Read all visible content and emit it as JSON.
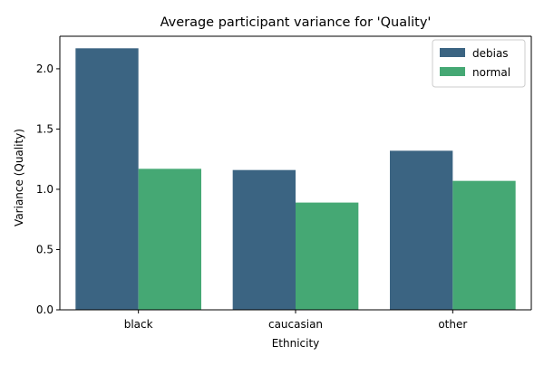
{
  "chart_data": {
    "type": "bar",
    "title": "Average participant variance for 'Quality'",
    "xlabel": "Ethnicity",
    "ylabel": "Variance (Quality)",
    "categories": [
      "black",
      "caucasian",
      "other"
    ],
    "series": [
      {
        "name": "debias",
        "values": [
          2.17,
          1.16,
          1.32
        ],
        "color": "#3b6482"
      },
      {
        "name": "normal",
        "values": [
          1.17,
          0.89,
          1.07
        ],
        "color": "#45a874"
      }
    ],
    "ylim": [
      0,
      2.27
    ],
    "yticks": [
      0.0,
      0.5,
      1.0,
      1.5,
      2.0
    ],
    "ytick_labels": [
      "0.0",
      "0.5",
      "1.0",
      "1.5",
      "2.0"
    ],
    "grid": false,
    "legend_position": "top-right"
  }
}
